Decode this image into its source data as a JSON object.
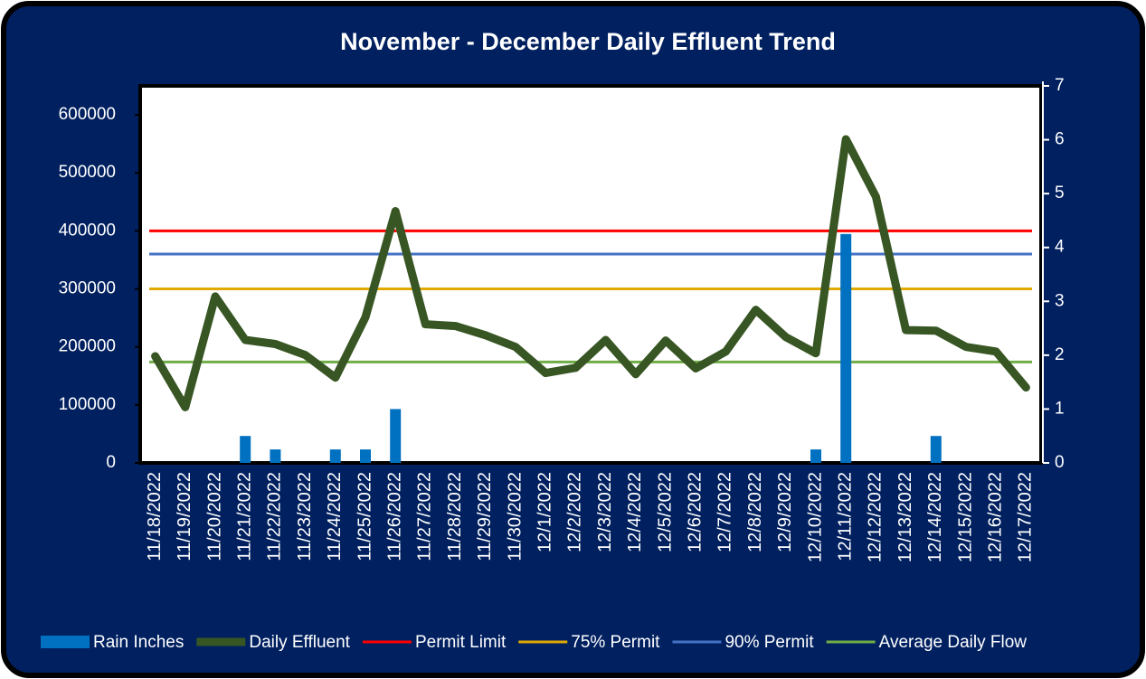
{
  "chart_data": {
    "type": "bar_line",
    "title": "November - December Daily Effluent Trend",
    "categories": [
      "11/18/2022",
      "11/19/2022",
      "11/20/2022",
      "11/21/2022",
      "11/22/2022",
      "11/23/2022",
      "11/24/2022",
      "11/25/2022",
      "11/26/2022",
      "11/27/2022",
      "11/28/2022",
      "11/29/2022",
      "11/30/2022",
      "12/1/2022",
      "12/2/2022",
      "12/3/2022",
      "12/4/2022",
      "12/5/2022",
      "12/6/2022",
      "12/7/2022",
      "12/8/2022",
      "12/9/2022",
      "12/10/2022",
      "12/11/2022",
      "12/12/2022",
      "12/13/2022",
      "12/14/2022",
      "12/15/2022",
      "12/16/2022",
      "12/17/2022"
    ],
    "series": [
      {
        "name": "Rain Inches",
        "type": "bar",
        "axis": "y2",
        "color": "#0070c0",
        "values": [
          0,
          0,
          0,
          0.5,
          0.25,
          0,
          0.25,
          0.25,
          1,
          0,
          0,
          0,
          0,
          0,
          0,
          0,
          0,
          0,
          0,
          0,
          0,
          0,
          0.25,
          4.25,
          0,
          0,
          0.5,
          0,
          0,
          0
        ]
      },
      {
        "name": "Daily Effluent",
        "type": "line",
        "color": "#375623",
        "values": [
          184000,
          96000,
          287000,
          212000,
          205000,
          186000,
          147000,
          251000,
          434000,
          239000,
          236000,
          220000,
          200000,
          155000,
          164000,
          212000,
          153000,
          211000,
          163000,
          192000,
          264000,
          217000,
          189000,
          558000,
          459000,
          229000,
          228000,
          200000,
          192000,
          130000
        ]
      },
      {
        "name": "Permit Limit",
        "type": "hline",
        "color": "#ff0000",
        "value": 400000
      },
      {
        "name": "75% Permit",
        "type": "hline",
        "color": "#e0a800",
        "value": 300000
      },
      {
        "name": "90% Permit",
        "type": "hline",
        "color": "#4472c4",
        "value": 360000
      },
      {
        "name": "Average Daily Flow",
        "type": "hline",
        "color": "#70ad47",
        "value": 174000
      }
    ],
    "ylim": [
      0,
      650000
    ],
    "yticks": [
      0,
      100000,
      200000,
      300000,
      400000,
      500000,
      600000
    ],
    "y2lim": [
      0,
      7
    ],
    "y2ticks": [
      0,
      1,
      2,
      3,
      4,
      5,
      6,
      7
    ],
    "legend": "bottom"
  }
}
